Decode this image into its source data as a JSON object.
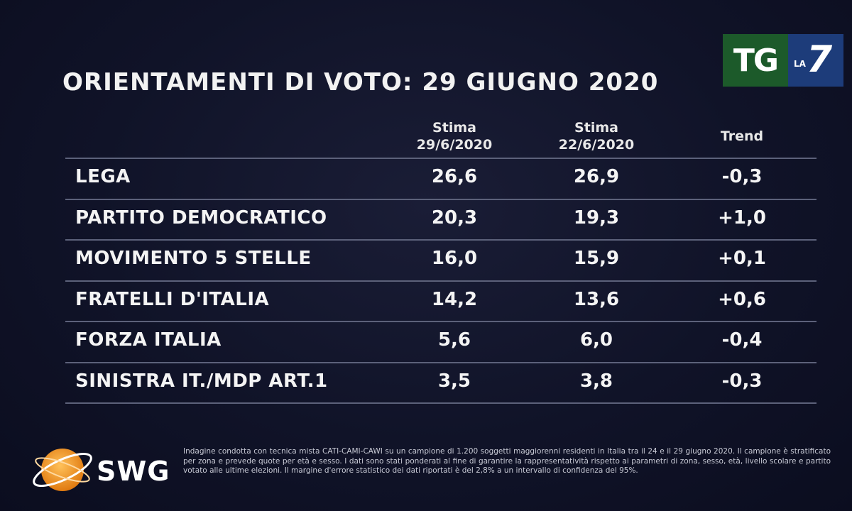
{
  "title": "ORIENTAMENTI DI VOTO: 29 GIUGNO 2020",
  "broadcaster_logo": {
    "tg": "TG",
    "la": "LA",
    "seven": "7"
  },
  "columns": {
    "col1_line1": "Stima",
    "col1_line2": "29/6/2020",
    "col2_line1": "Stima",
    "col2_line2": "22/6/2020",
    "col3": "Trend"
  },
  "chart_data": {
    "type": "table",
    "title": "ORIENTAMENTI DI VOTO: 29 GIUGNO 2020",
    "columns": [
      "Stima 29/6/2020",
      "Stima 22/6/2020",
      "Trend"
    ],
    "rows": [
      {
        "party": "LEGA",
        "stima_29_6": "26,6",
        "stima_22_6": "26,9",
        "trend": "-0,3"
      },
      {
        "party": "PARTITO DEMOCRATICO",
        "stima_29_6": "20,3",
        "stima_22_6": "19,3",
        "trend": "+1,0"
      },
      {
        "party": "MOVIMENTO 5 STELLE",
        "stima_29_6": "16,0",
        "stima_22_6": "15,9",
        "trend": "+0,1"
      },
      {
        "party": "FRATELLI D'ITALIA",
        "stima_29_6": "14,2",
        "stima_22_6": "13,6",
        "trend": "+0,6"
      },
      {
        "party": "FORZA ITALIA",
        "stima_29_6": "5,6",
        "stima_22_6": "6,0",
        "trend": "-0,4"
      },
      {
        "party": "SINISTRA IT./MDP ART.1",
        "stima_29_6": "3,5",
        "stima_22_6": "3,8",
        "trend": "-0,3"
      }
    ]
  },
  "footer": {
    "brand": "SWG",
    "note": "Indagine condotta con tecnica mista CATI-CAMI-CAWI su un campione di 1.200 soggetti maggiorenni residenti in Italia tra il 24 e il 29 giugno 2020. Il campione è stratificato per zona e prevede quote per età e sesso. I dati sono stati ponderati al fine di garantire la rappresentatività rispetto ai parametri di zona, sesso, età, livello scolare e partito votato alle ultime elezioni. Il margine d'errore statistico dei dati riportati è del 2,8% a un intervallo di confidenza del 95%."
  },
  "colors": {
    "background": "#0f1227",
    "text": "#ffffff",
    "rule": "#5c617a",
    "tg_green": "#1c5a2a",
    "la7_blue": "#1d3c7a",
    "swg_orange": "#f29a1f"
  }
}
